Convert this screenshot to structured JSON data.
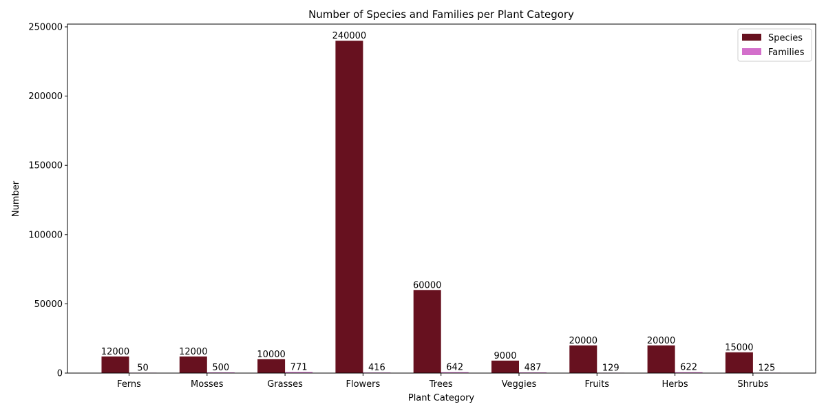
{
  "chart_data": {
    "type": "bar",
    "title": "Number of Species and Families per Plant Category",
    "xlabel": "Plant Category",
    "ylabel": "Number",
    "categories": [
      "Ferns",
      "Mosses",
      "Grasses",
      "Flowers",
      "Trees",
      "Veggies",
      "Fruits",
      "Herbs",
      "Shrubs"
    ],
    "series": [
      {
        "name": "Species",
        "color": "#67111f",
        "values": [
          12000,
          12000,
          10000,
          240000,
          60000,
          9000,
          20000,
          20000,
          15000
        ]
      },
      {
        "name": "Families",
        "color": "#d36fcb",
        "values": [
          50,
          500,
          771,
          416,
          642,
          487,
          129,
          622,
          125
        ]
      }
    ],
    "ylim": [
      0,
      252000
    ],
    "yticks": [
      0,
      50000,
      100000,
      150000,
      200000,
      250000
    ],
    "grid": false,
    "legend_position": "top-right"
  }
}
